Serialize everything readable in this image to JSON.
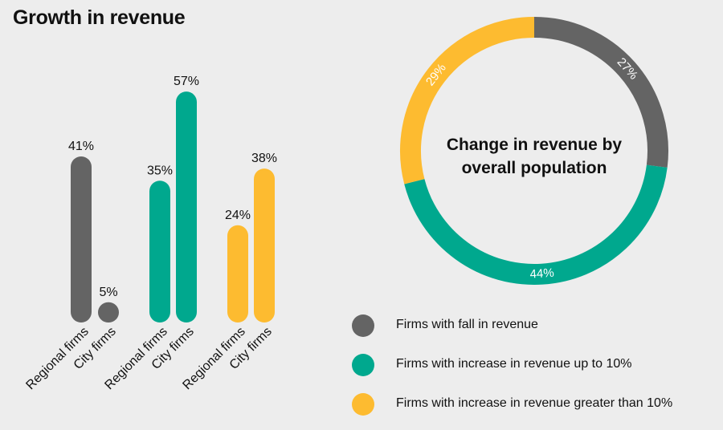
{
  "title": "Growth in revenue",
  "colors": {
    "fall": "#646464",
    "up_to_10": "#00a88e",
    "greater_10": "#fdbb30"
  },
  "chart_data": [
    {
      "type": "bar",
      "title": "Growth in revenue",
      "categories": [
        "Regional firms",
        "City firms",
        "Regional firms",
        "City firms",
        "Regional firms",
        "City firms"
      ],
      "groups": [
        {
          "name": "Firms with fall in revenue",
          "color_key": "fall",
          "bars": [
            {
              "category": "Regional firms",
              "value": 41,
              "label": "41%"
            },
            {
              "category": "City firms",
              "value": 5,
              "label": "5%"
            }
          ]
        },
        {
          "name": "Firms with increase in revenue up to 10%",
          "color_key": "up_to_10",
          "bars": [
            {
              "category": "Regional firms",
              "value": 35,
              "label": "35%"
            },
            {
              "category": "City firms",
              "value": 57,
              "label": "57%"
            }
          ]
        },
        {
          "name": "Firms with increase in revenue greater than 10%",
          "color_key": "greater_10",
          "bars": [
            {
              "category": "Regional firms",
              "value": 24,
              "label": "24%"
            },
            {
              "category": "City firms",
              "value": 38,
              "label": "38%"
            }
          ]
        }
      ],
      "ylim": [
        0,
        60
      ]
    },
    {
      "type": "pie",
      "variant": "donut",
      "title": "Change in revenue by overall population",
      "slices": [
        {
          "name": "Firms with fall in revenue",
          "value": 27,
          "label": "27%",
          "color_key": "fall"
        },
        {
          "name": "Firms with increase in revenue up to 10%",
          "value": 44,
          "label": "44%",
          "color_key": "up_to_10"
        },
        {
          "name": "Firms with increase in revenue greater than 10%",
          "value": 29,
          "label": "29%",
          "color_key": "greater_10"
        }
      ]
    }
  ],
  "legend": [
    {
      "label": "Firms with fall in revenue",
      "color_key": "fall"
    },
    {
      "label": "Firms with increase in revenue up to 10%",
      "color_key": "up_to_10"
    },
    {
      "label": "Firms with increase in revenue greater than 10%",
      "color_key": "greater_10"
    }
  ]
}
